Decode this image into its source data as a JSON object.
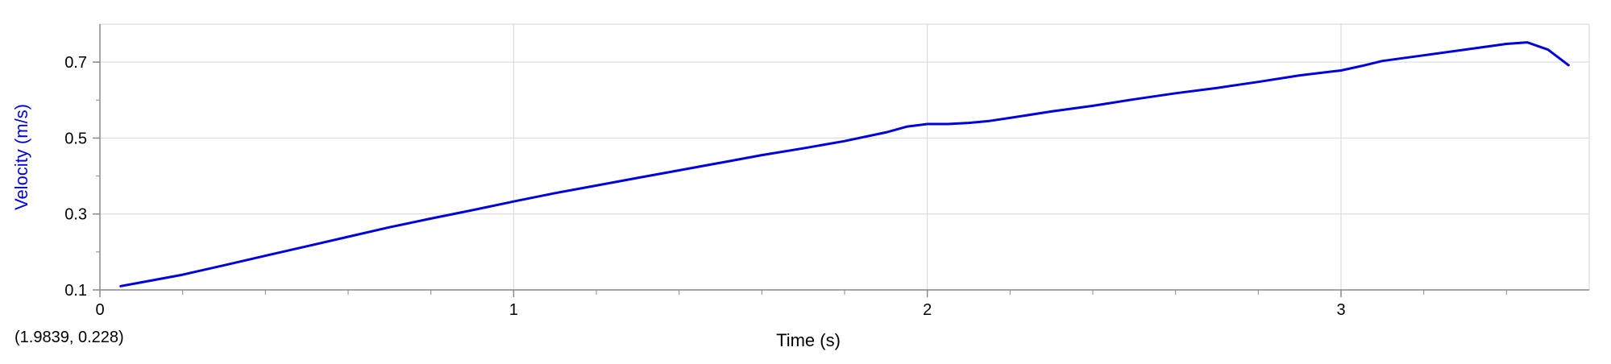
{
  "chart_data": {
    "type": "line",
    "title": "",
    "xlabel": "Time (s)",
    "ylabel": "Velocity (m/s)",
    "xlim": [
      0,
      3.6
    ],
    "ylim": [
      0.1,
      0.8
    ],
    "x_ticks": [
      0,
      1,
      2,
      3
    ],
    "x_tick_labels": [
      "0",
      "1",
      "2",
      "3"
    ],
    "y_ticks": [
      0.1,
      0.3,
      0.5,
      0.7
    ],
    "y_tick_labels": [
      "0.1",
      "0.3",
      "0.5",
      "0.7"
    ],
    "grid": true,
    "legend": "none",
    "colors": {
      "series": "#0000dd",
      "ylabel": "#0000dd",
      "grid": "#d6d6d6",
      "axis": "#888888"
    },
    "series": [
      {
        "x": [
          0.05,
          0.1,
          0.2,
          0.3,
          0.4,
          0.5,
          0.6,
          0.7,
          0.8,
          0.9,
          1.0,
          1.1,
          1.2,
          1.3,
          1.4,
          1.5,
          1.6,
          1.7,
          1.8,
          1.9,
          1.95,
          2.0,
          2.05,
          2.1,
          2.15,
          2.2,
          2.3,
          2.4,
          2.5,
          2.6,
          2.7,
          2.8,
          2.9,
          3.0,
          3.05,
          3.1,
          3.2,
          3.3,
          3.4,
          3.45,
          3.5,
          3.55
        ],
        "y": [
          0.11,
          0.12,
          0.14,
          0.165,
          0.19,
          0.215,
          0.24,
          0.265,
          0.288,
          0.31,
          0.333,
          0.355,
          0.375,
          0.395,
          0.415,
          0.435,
          0.455,
          0.473,
          0.492,
          0.515,
          0.53,
          0.537,
          0.537,
          0.54,
          0.545,
          0.553,
          0.57,
          0.585,
          0.602,
          0.618,
          0.632,
          0.648,
          0.665,
          0.678,
          0.69,
          0.703,
          0.718,
          0.733,
          0.748,
          0.752,
          0.733,
          0.692
        ]
      }
    ]
  },
  "readout": "(1.9839, 0.228)"
}
